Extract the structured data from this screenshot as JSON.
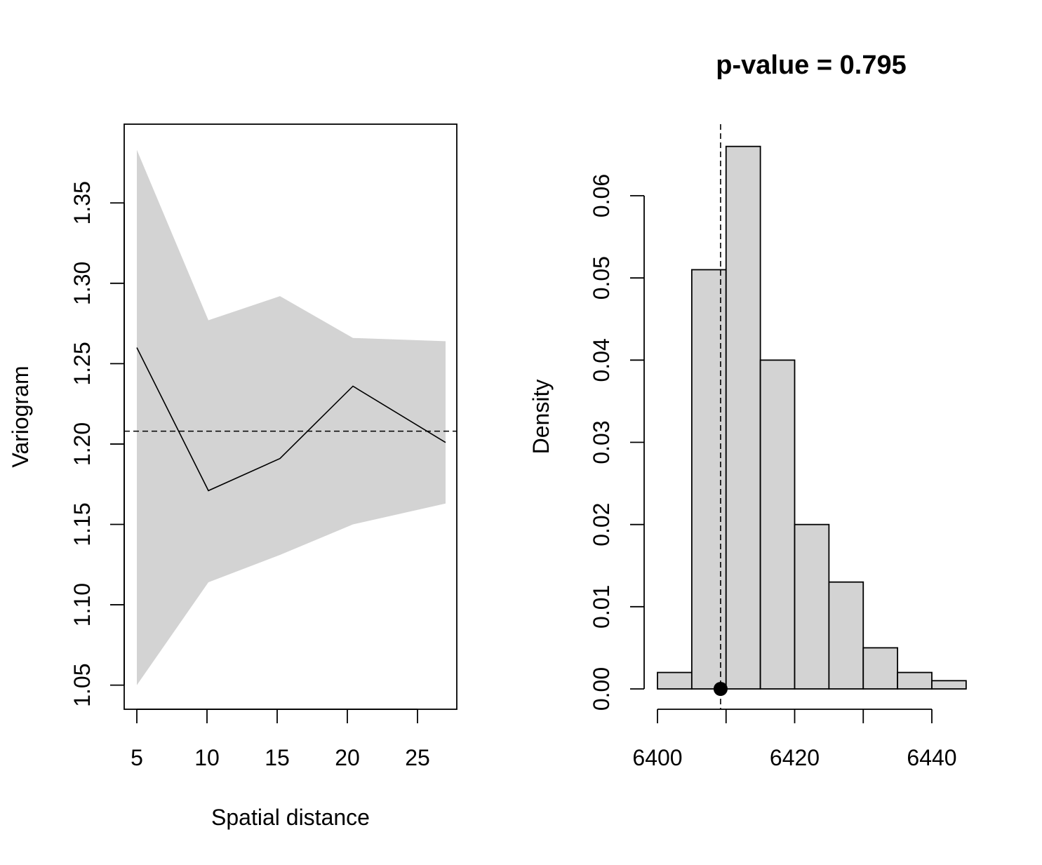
{
  "chart_data": [
    {
      "type": "line",
      "title": "",
      "xlabel": "Spatial distance",
      "ylabel": "Variogram",
      "x": [
        5,
        10.1,
        15.2,
        20.4,
        27
      ],
      "series": [
        {
          "values": [
            1.26,
            1.171,
            1.191,
            1.236,
            1.201
          ]
        }
      ],
      "envelope": {
        "lower": [
          1.05,
          1.114,
          1.131,
          1.15,
          1.163
        ],
        "upper": [
          1.383,
          1.277,
          1.292,
          1.266,
          1.264
        ]
      },
      "reference_line": 1.208,
      "xlim": [
        4.1,
        27.8
      ],
      "ylim": [
        1.035,
        1.399
      ],
      "xticks": [
        5,
        10,
        15,
        20,
        25
      ],
      "yticks": [
        1.05,
        1.1,
        1.15,
        1.2,
        1.25,
        1.3,
        1.35
      ],
      "xtick_labels": [
        "5",
        "10",
        "15",
        "20",
        "25"
      ],
      "ytick_labels": [
        "1.05",
        "1.10",
        "1.15",
        "1.20",
        "1.25",
        "1.30",
        "1.35"
      ],
      "grid": false
    },
    {
      "type": "bar",
      "title": "p-value = 0.795",
      "xlabel": "",
      "ylabel": "Density",
      "bin_edges": [
        6400,
        6405,
        6410,
        6415,
        6420,
        6425,
        6430,
        6435,
        6440,
        6445
      ],
      "values": [
        0.002,
        0.051,
        0.066,
        0.04,
        0.02,
        0.013,
        0.005,
        0.002,
        0.001
      ],
      "observed_value": 6409.2,
      "xticks": [
        6400,
        6410,
        6420,
        6430,
        6440
      ],
      "xtick_labels": [
        "6400",
        "",
        "6420",
        "",
        "6440"
      ],
      "yticks": [
        0.0,
        0.01,
        0.02,
        0.03,
        0.04,
        0.05,
        0.06
      ],
      "ytick_labels": [
        "0.00",
        "0.01",
        "0.02",
        "0.03",
        "0.04",
        "0.05",
        "0.06"
      ],
      "ylim": [
        0,
        0.066
      ],
      "grid": false
    }
  ],
  "colors": {
    "envelope": "#d3d3d3",
    "bar_fill": "#d3d3d3",
    "line": "#000000"
  }
}
